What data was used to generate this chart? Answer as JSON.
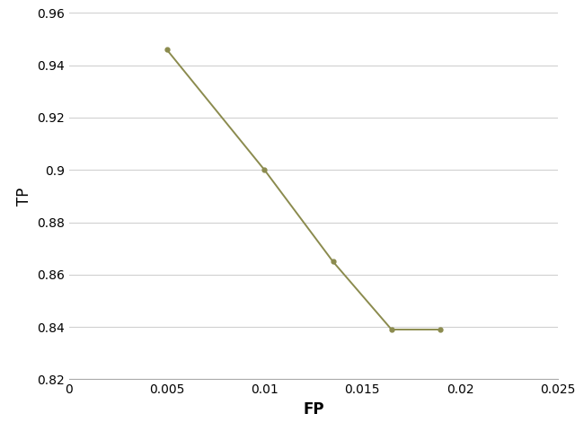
{
  "x": [
    0.005,
    0.01,
    0.0135,
    0.0165,
    0.019
  ],
  "y": [
    0.946,
    0.9,
    0.865,
    0.839,
    0.839
  ],
  "line_color": "#8b8b4e",
  "marker": "o",
  "marker_size": 3.5,
  "line_width": 1.4,
  "xlabel": "FP",
  "ylabel": "TP",
  "xlim": [
    0,
    0.025
  ],
  "ylim": [
    0.82,
    0.96
  ],
  "xticks": [
    0,
    0.005,
    0.01,
    0.015,
    0.02,
    0.025
  ],
  "yticks": [
    0.82,
    0.84,
    0.86,
    0.88,
    0.9,
    0.92,
    0.94,
    0.96
  ],
  "grid_color": "#d0d0d0",
  "background_color": "#ffffff",
  "xlabel_fontsize": 12,
  "ylabel_fontsize": 12,
  "tick_fontsize": 10,
  "spine_color": "#aaaaaa"
}
